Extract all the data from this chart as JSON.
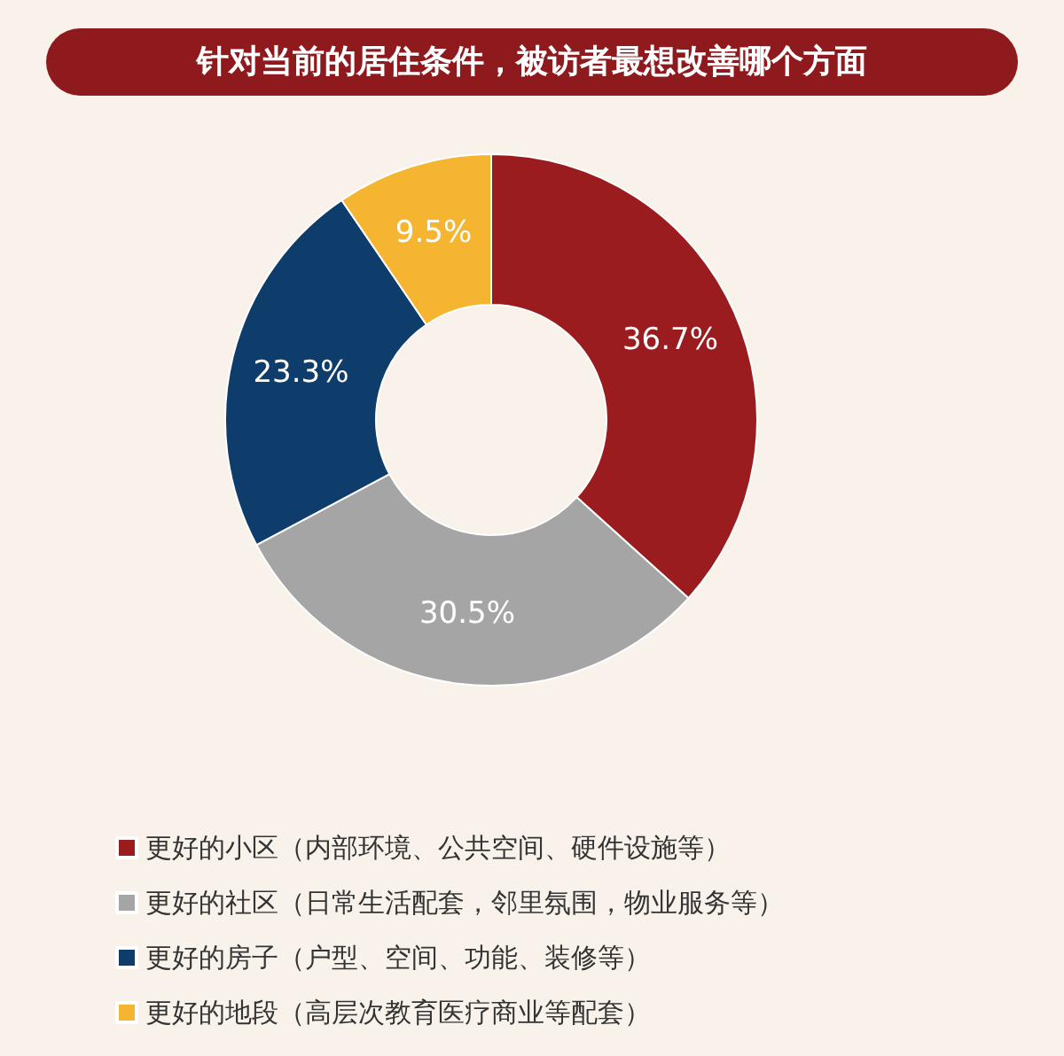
{
  "chart_data": {
    "type": "donut",
    "title": "针对当前的居住条件，被访者最想改善哪个方面",
    "categories": [
      "更好的小区（内部环境、公共空间、硬件设施等）",
      "更好的社区（日常生活配套，邻里氛围，物业服务等）",
      "更好的房子（户型、空间、功能、装修等）",
      "更好的地段（高层次教育医疗商业等配套）"
    ],
    "values": [
      36.7,
      30.5,
      23.3,
      9.5
    ],
    "value_labels": [
      "36.7%",
      "30.5%",
      "23.3%",
      "9.5%"
    ],
    "colors": [
      "#9b1c1f",
      "#a5a5a5",
      "#0e3d6b",
      "#f5b530"
    ],
    "legend": "bottom left"
  }
}
